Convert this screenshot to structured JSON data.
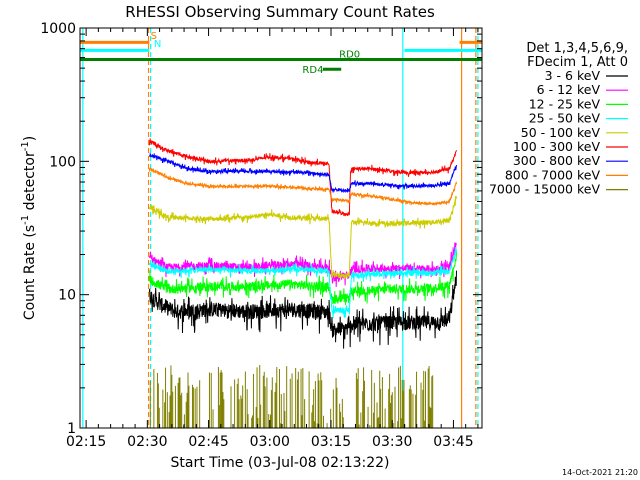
{
  "chart_data": {
    "type": "line",
    "title": "RHESSI Observing Summary Count Rates",
    "xlabel": "Start Time (03-Jul-08 02:13:22)",
    "ylabel": "Count Rate (s⁻¹ detector⁻¹)",
    "ylabel_main": "Count Rate (s",
    "ylabel_sup1": "-1",
    "ylabel_mid": " detector",
    "ylabel_sup2": "-1",
    "ylabel_end": ")",
    "yscale": "log",
    "ylim": [
      1,
      1000
    ],
    "xlim_minutes": [
      -1.5,
      97
    ],
    "x_ticks": [
      {
        "label": "02:15",
        "min": 0
      },
      {
        "label": "02:30",
        "min": 15
      },
      {
        "label": "02:45",
        "min": 30
      },
      {
        "label": "03:00",
        "min": 45
      },
      {
        "label": "03:15",
        "min": 60
      },
      {
        "label": "03:30",
        "min": 75
      },
      {
        "label": "03:45",
        "min": 90
      }
    ],
    "y_ticks": [
      {
        "label": "1",
        "value": 1
      },
      {
        "label": "10",
        "value": 10
      },
      {
        "label": "100",
        "value": 100
      },
      {
        "label": "1000",
        "value": 1000
      }
    ],
    "timestamp": "14-Oct-2021 21:20",
    "legend_header": [
      "Det 1,3,4,5,6,9,",
      "FDecim 1, Att 0"
    ],
    "series": [
      {
        "name": "3 - 6 keV",
        "color": "#000000",
        "start": 15.5,
        "end": 90.8,
        "points": [
          [
            15.5,
            10
          ],
          [
            18,
            8.5
          ],
          [
            22,
            7.5
          ],
          [
            30,
            7.8
          ],
          [
            40,
            7.5
          ],
          [
            50,
            7.8
          ],
          [
            59.5,
            7.4
          ],
          [
            60.2,
            5.5
          ],
          [
            64.5,
            5.6
          ],
          [
            65,
            6
          ],
          [
            72,
            6.1
          ],
          [
            75,
            6.2
          ],
          [
            85,
            6.2
          ],
          [
            89,
            6.5
          ],
          [
            90.8,
            14
          ]
        ],
        "noise": 0.13,
        "label_offset": 0
      },
      {
        "name": "6 - 12 keV",
        "color": "#ff00ff",
        "start": 15.5,
        "end": 90.8,
        "points": [
          [
            15.5,
            19
          ],
          [
            20,
            16
          ],
          [
            30,
            16.5
          ],
          [
            40,
            16
          ],
          [
            50,
            17
          ],
          [
            59.5,
            16
          ],
          [
            60.2,
            13.5
          ],
          [
            64.5,
            14
          ],
          [
            65,
            15.5
          ],
          [
            75,
            15.8
          ],
          [
            85,
            15.5
          ],
          [
            89,
            16
          ],
          [
            90.8,
            24
          ]
        ],
        "noise": 0.07
      },
      {
        "name": "12 - 25 keV",
        "color": "#00ff00",
        "start": 15.5,
        "end": 90.8,
        "points": [
          [
            15.5,
            13
          ],
          [
            20,
            11
          ],
          [
            30,
            11.5
          ],
          [
            40,
            11.5
          ],
          [
            50,
            12
          ],
          [
            59.5,
            11.5
          ],
          [
            60.2,
            9.2
          ],
          [
            64.5,
            9.5
          ],
          [
            65,
            10.5
          ],
          [
            75,
            11
          ],
          [
            85,
            11.2
          ],
          [
            89,
            11.8
          ],
          [
            90.8,
            20
          ]
        ],
        "noise": 0.08
      },
      {
        "name": "25 - 50 keV",
        "color": "#00ffff",
        "start": 15.5,
        "end": 90.8,
        "points": [
          [
            15.5,
            17
          ],
          [
            20,
            15
          ],
          [
            30,
            15.5
          ],
          [
            40,
            15
          ],
          [
            50,
            15.5
          ],
          [
            59.5,
            15
          ],
          [
            60.2,
            7.5
          ],
          [
            64.5,
            7.8
          ],
          [
            65,
            14
          ],
          [
            75,
            14.5
          ],
          [
            85,
            14.5
          ],
          [
            89,
            15
          ],
          [
            90.8,
            22
          ]
        ],
        "noise": 0.05
      },
      {
        "name": "50 - 100 keV",
        "color": "#cccc00",
        "start": 15.5,
        "end": 90.8,
        "points": [
          [
            15.5,
            45
          ],
          [
            20,
            38
          ],
          [
            30,
            37
          ],
          [
            40,
            38
          ],
          [
            45,
            40
          ],
          [
            50,
            38
          ],
          [
            59.5,
            37
          ],
          [
            60.2,
            14
          ],
          [
            64.5,
            14
          ],
          [
            65,
            35
          ],
          [
            75,
            34
          ],
          [
            85,
            35
          ],
          [
            89,
            36
          ],
          [
            90.8,
            55
          ]
        ],
        "noise": 0.04
      },
      {
        "name": "100 - 300 keV",
        "color": "#ff0000",
        "start": 15.5,
        "end": 90.8,
        "points": [
          [
            15.5,
            140
          ],
          [
            20,
            120
          ],
          [
            25,
            108
          ],
          [
            30,
            100
          ],
          [
            40,
            102
          ],
          [
            45,
            108
          ],
          [
            50,
            105
          ],
          [
            55,
            98
          ],
          [
            59.5,
            96
          ],
          [
            60.2,
            42
          ],
          [
            64.5,
            40
          ],
          [
            64.8,
            88
          ],
          [
            70,
            88
          ],
          [
            75,
            84
          ],
          [
            80,
            82
          ],
          [
            85,
            83
          ],
          [
            89,
            88
          ],
          [
            90.8,
            120
          ]
        ],
        "noise": 0.03
      },
      {
        "name": "300 - 800 keV",
        "color": "#0000ff",
        "start": 15.5,
        "end": 90.8,
        "points": [
          [
            15.5,
            112
          ],
          [
            20,
            100
          ],
          [
            25,
            88
          ],
          [
            30,
            84
          ],
          [
            40,
            84
          ],
          [
            45,
            84
          ],
          [
            50,
            83
          ],
          [
            55,
            82
          ],
          [
            59.5,
            79
          ],
          [
            60.2,
            62
          ],
          [
            64.5,
            60
          ],
          [
            65,
            68
          ],
          [
            70,
            68
          ],
          [
            75,
            66
          ],
          [
            80,
            65
          ],
          [
            85,
            66
          ],
          [
            89,
            68
          ],
          [
            90.8,
            95
          ]
        ],
        "noise": 0.025
      },
      {
        "name": "800 - 7000 keV",
        "color": "#ff7f00",
        "start": 15.5,
        "end": 90.8,
        "points": [
          [
            15.5,
            88
          ],
          [
            20,
            76
          ],
          [
            25,
            68
          ],
          [
            30,
            65
          ],
          [
            40,
            65
          ],
          [
            45,
            65
          ],
          [
            50,
            64
          ],
          [
            55,
            62
          ],
          [
            59.5,
            62
          ],
          [
            60.2,
            52
          ],
          [
            64.5,
            50
          ],
          [
            65,
            57
          ],
          [
            70,
            55
          ],
          [
            75,
            52
          ],
          [
            80,
            49
          ],
          [
            85,
            48
          ],
          [
            89,
            50
          ],
          [
            90.8,
            70
          ]
        ],
        "noise": 0.02
      },
      {
        "name": "7000 - 15000 keV",
        "color": "#7f7f00",
        "start": 15.5,
        "end": 90.8,
        "points": [
          [
            15.5,
            1
          ],
          [
            90.8,
            1
          ]
        ],
        "noise": 0,
        "label_offset": 0
      }
    ],
    "annotations": [
      {
        "label": "S",
        "color": "#ff7f00"
      },
      {
        "label": "N",
        "color": "#00ffff"
      },
      {
        "label": "RD0",
        "color": "#007f00"
      },
      {
        "label": "RD4",
        "color": "#007f00"
      }
    ],
    "bars": [
      {
        "kind": "S",
        "color": "#ff7f00",
        "segments": [
          [
            -1.5,
            15.5
          ],
          [
            91.5,
            97
          ]
        ],
        "value": 780
      },
      {
        "kind": "N",
        "color": "#00ffff",
        "segments": [
          [
            -1.5,
            15.5
          ],
          [
            78,
            97
          ]
        ],
        "value": 680
      },
      {
        "kind": "RD0",
        "color": "#007f00",
        "segments": [
          [
            -1.5,
            97
          ]
        ],
        "value": 580
      },
      {
        "kind": "RD4",
        "color": "#007f00",
        "segments": [
          [
            58,
            62.5
          ]
        ],
        "value": 490
      }
    ],
    "vlines": [
      {
        "min": -0.8,
        "color": "#00ffff",
        "dash": false
      },
      {
        "min": 15.3,
        "color": "#ff7f00",
        "dash": true
      },
      {
        "min": 15.8,
        "color": "#00ffff",
        "dash": true
      },
      {
        "min": 77.6,
        "color": "#00ffff",
        "dash": false
      },
      {
        "min": 92.0,
        "color": "#ff7f00",
        "dash": false
      },
      {
        "min": 95.5,
        "color": "#ff7f00",
        "dash": true
      },
      {
        "min": 96.0,
        "color": "#00ffff",
        "dash": true
      }
    ],
    "olive_spikes": {
      "color": "#7f7f00",
      "ranges": [
        [
          15.5,
          28
        ],
        [
          30,
          65
        ],
        [
          66,
          85
        ]
      ],
      "max": 3
    }
  }
}
